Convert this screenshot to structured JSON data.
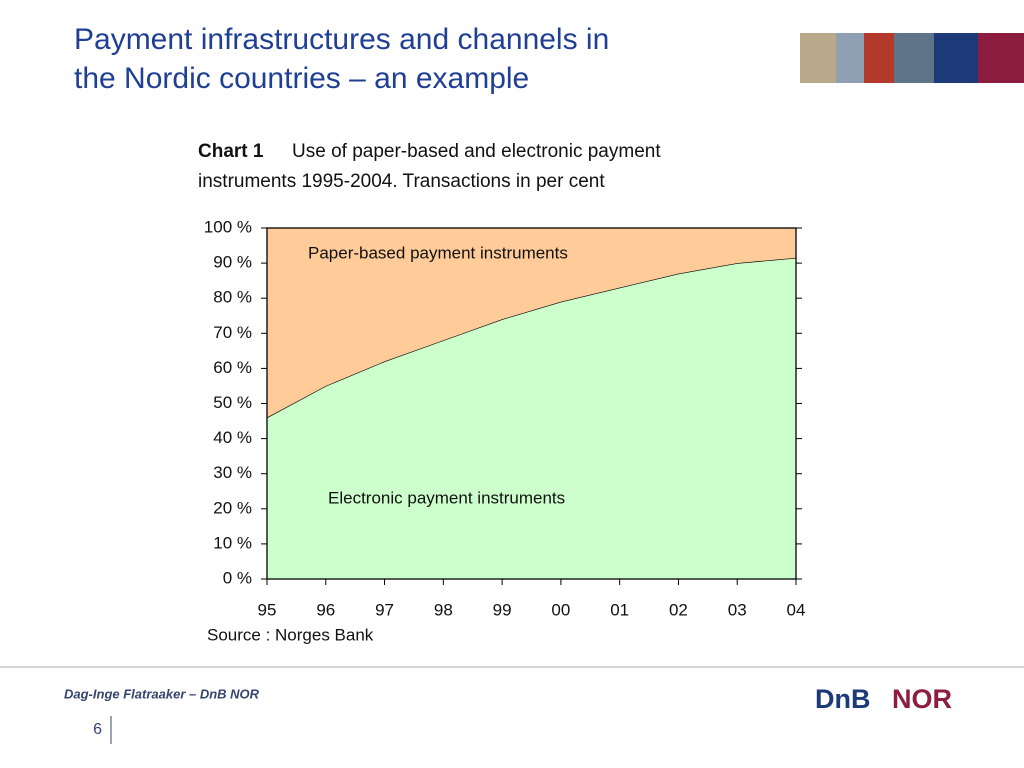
{
  "slide": {
    "title": [
      "Payment infrastructures and channels in",
      "the Nordic countries – an example"
    ],
    "footer": "Dag-Inge Flatraaker – DnB NOR",
    "page": "6",
    "logo": [
      "DnB",
      "NOR"
    ]
  },
  "chart_data": {
    "type": "stacked-area",
    "label": "Chart 1",
    "title": [
      "Use of paper-based and electronic payment",
      "instruments 1995-2004. Transactions in per cent"
    ],
    "source": "Source : Norges Bank",
    "categories": [
      "95",
      "96",
      "97",
      "98",
      "99",
      "00",
      "01",
      "02",
      "03",
      "04"
    ],
    "series": [
      {
        "name": "Electronic payment instruments",
        "color": "#ccffcc",
        "values": [
          46,
          55,
          62,
          68,
          74,
          79,
          83,
          87,
          90,
          91.5
        ]
      },
      {
        "name": "Paper-based payment instruments",
        "color": "#ffcc99",
        "values": [
          54,
          45,
          38,
          32,
          26,
          21,
          17,
          13,
          10,
          8.5
        ]
      }
    ],
    "ylim": [
      0,
      100
    ],
    "yticks": [
      {
        "value": 0,
        "label": "0 %"
      },
      {
        "value": 10,
        "label": "10 %"
      },
      {
        "value": 20,
        "label": "20 %"
      },
      {
        "value": 30,
        "label": "30 %"
      },
      {
        "value": 40,
        "label": "40 %"
      },
      {
        "value": 50,
        "label": "50 %"
      },
      {
        "value": 60,
        "label": "60 %"
      },
      {
        "value": 70,
        "label": "70 %"
      },
      {
        "value": 80,
        "label": "80 %"
      },
      {
        "value": 90,
        "label": "90 %"
      },
      {
        "value": 100,
        "label": "100 %"
      }
    ]
  }
}
